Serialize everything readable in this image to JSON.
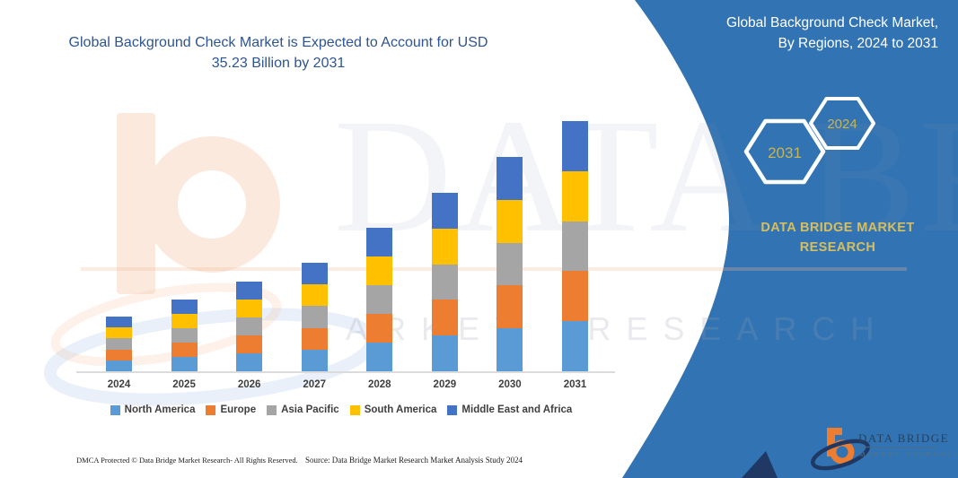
{
  "title": {
    "line1": "Global Background Check Market is Expected to Account for USD",
    "line2": "35.23 Billion by 2031"
  },
  "panel": {
    "bg_color": "#3274B3",
    "heading_line1": "Global Background Check Market,",
    "heading_line2": "By Regions, 2024 to 2031",
    "badges": [
      {
        "label": "2031"
      },
      {
        "label": "2024"
      }
    ],
    "brand_line1": "DATA BRIDGE MARKET",
    "brand_line2": "RESEARCH",
    "accent_color": "#D5BE62"
  },
  "chart_data": {
    "type": "bar",
    "stacked": true,
    "title": "Global Background Check Market is Expected to Account for USD 35.23 Billion by 2031",
    "unit": "USD Billion",
    "categories": [
      "2024",
      "2025",
      "2026",
      "2027",
      "2028",
      "2029",
      "2030",
      "2031"
    ],
    "series": [
      {
        "name": "North America",
        "color": "#5B9BD5",
        "values": [
          1.54,
          2.02,
          2.52,
          3.06,
          4.04,
          5.03,
          6.04,
          7.05
        ]
      },
      {
        "name": "Europe",
        "color": "#ED7D31",
        "values": [
          1.54,
          2.02,
          2.52,
          3.06,
          4.04,
          5.03,
          6.04,
          7.05
        ]
      },
      {
        "name": "Asia Pacific",
        "color": "#A5A5A5",
        "values": [
          1.54,
          2.02,
          2.52,
          3.06,
          4.04,
          5.03,
          6.04,
          7.05
        ]
      },
      {
        "name": "South America",
        "color": "#FFC000",
        "values": [
          1.54,
          2.02,
          2.52,
          3.06,
          4.04,
          5.03,
          6.04,
          7.04
        ]
      },
      {
        "name": "Middle East and Africa",
        "color": "#4472C4",
        "values": [
          1.54,
          2.02,
          2.52,
          3.06,
          4.04,
          5.02,
          6.03,
          7.04
        ]
      }
    ],
    "totals_estimated": [
      7.7,
      10.1,
      12.6,
      15.3,
      20.2,
      25.14,
      30.19,
      35.23
    ],
    "highlight": "USD 35.23 Billion by 2031",
    "axis": {
      "baseline_color": "#DBDBDB",
      "gridlines": false,
      "y_axis_visible": false
    },
    "legend_position": "bottom"
  },
  "footer": {
    "dmca": "DMCA Protected © Data Bridge Market Research-  All Rights Reserved.",
    "source": "Source: Data Bridge Market Research  Market Analysis Study 2024"
  },
  "logo": {
    "name": "DATA BRIDGE",
    "subname": "MARKET RESEARCH"
  },
  "watermark": {
    "big_text": "DATA BRIDGE",
    "row_text": "MARKET RESEARCH"
  }
}
